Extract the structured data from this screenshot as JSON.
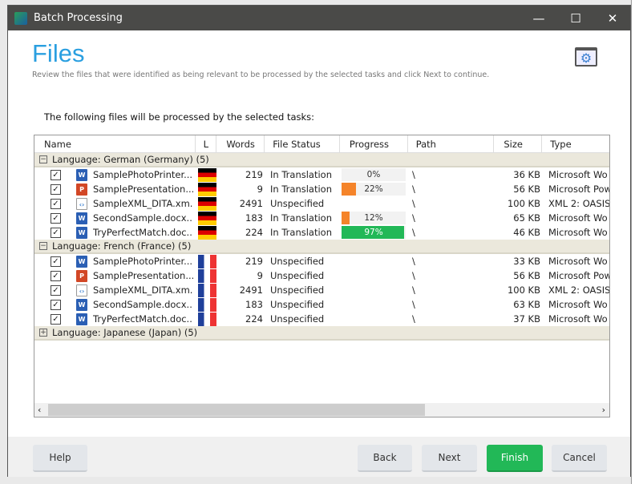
{
  "window": {
    "title": "Batch Processing",
    "minimize": "—",
    "maximize": "☐",
    "close": "✕"
  },
  "page": {
    "title": "Files",
    "subtitle": "Review the files that were identified as being relevant to be processed by the selected tasks and click Next to continue.",
    "lead": "The following files will be processed by the selected tasks:"
  },
  "columns": [
    "Name",
    "L",
    "Words",
    "File Status",
    "Progress",
    "Path",
    "Size",
    "Type"
  ],
  "groups": [
    {
      "label": "Language: German (Germany) (5)",
      "expanded": true,
      "toggle": "−",
      "flag": "de",
      "files": [
        {
          "name": "SamplePhotoPrinter....",
          "icon": "word",
          "words": "219",
          "status": "In Translation",
          "progress": "0%",
          "pct": 0,
          "path": "\\",
          "size": "36 KB",
          "type": "Microsoft Wo"
        },
        {
          "name": "SamplePresentation....",
          "icon": "powerpoint",
          "words": "9",
          "status": "In Translation",
          "progress": "22%",
          "pct": 22,
          "path": "\\",
          "size": "56 KB",
          "type": "Microsoft Pow"
        },
        {
          "name": "SampleXML_DITA.xm...",
          "icon": "xml",
          "words": "2491",
          "status": "Unspecified",
          "progress": "",
          "pct": null,
          "path": "\\",
          "size": "100 KB",
          "type": "XML 2: OASIS"
        },
        {
          "name": "SecondSample.docx....",
          "icon": "word",
          "words": "183",
          "status": "In Translation",
          "progress": "12%",
          "pct": 12,
          "path": "\\",
          "size": "65 KB",
          "type": "Microsoft Wo"
        },
        {
          "name": "TryPerfectMatch.doc....",
          "icon": "word",
          "words": "224",
          "status": "In Translation",
          "progress": "97%",
          "pct": 97,
          "path": "\\",
          "size": "46 KB",
          "type": "Microsoft Wo"
        }
      ]
    },
    {
      "label": "Language: French (France) (5)",
      "expanded": true,
      "toggle": "−",
      "flag": "fr",
      "files": [
        {
          "name": "SamplePhotoPrinter....",
          "icon": "word",
          "words": "219",
          "status": "Unspecified",
          "progress": "",
          "pct": null,
          "path": "\\",
          "size": "33 KB",
          "type": "Microsoft Wo"
        },
        {
          "name": "SamplePresentation....",
          "icon": "powerpoint",
          "words": "9",
          "status": "Unspecified",
          "progress": "",
          "pct": null,
          "path": "\\",
          "size": "56 KB",
          "type": "Microsoft Pow"
        },
        {
          "name": "SampleXML_DITA.xm...",
          "icon": "xml",
          "words": "2491",
          "status": "Unspecified",
          "progress": "",
          "pct": null,
          "path": "\\",
          "size": "100 KB",
          "type": "XML 2: OASIS"
        },
        {
          "name": "SecondSample.docx....",
          "icon": "word",
          "words": "183",
          "status": "Unspecified",
          "progress": "",
          "pct": null,
          "path": "\\",
          "size": "63 KB",
          "type": "Microsoft Wo"
        },
        {
          "name": "TryPerfectMatch.doc....",
          "icon": "word",
          "words": "224",
          "status": "Unspecified",
          "progress": "",
          "pct": null,
          "path": "\\",
          "size": "37 KB",
          "type": "Microsoft Wo"
        }
      ]
    },
    {
      "label": "Language: Japanese (Japan) (5)",
      "expanded": false,
      "toggle": "+",
      "flag": "",
      "files": []
    }
  ],
  "colors": {
    "accent": "#2a9fe0",
    "progress_low": "#f5842a",
    "progress_high": "#22b857",
    "finish": "#22b857"
  },
  "buttons": {
    "help": "Help",
    "back": "Back",
    "next": "Next",
    "finish": "Finish",
    "cancel": "Cancel"
  }
}
